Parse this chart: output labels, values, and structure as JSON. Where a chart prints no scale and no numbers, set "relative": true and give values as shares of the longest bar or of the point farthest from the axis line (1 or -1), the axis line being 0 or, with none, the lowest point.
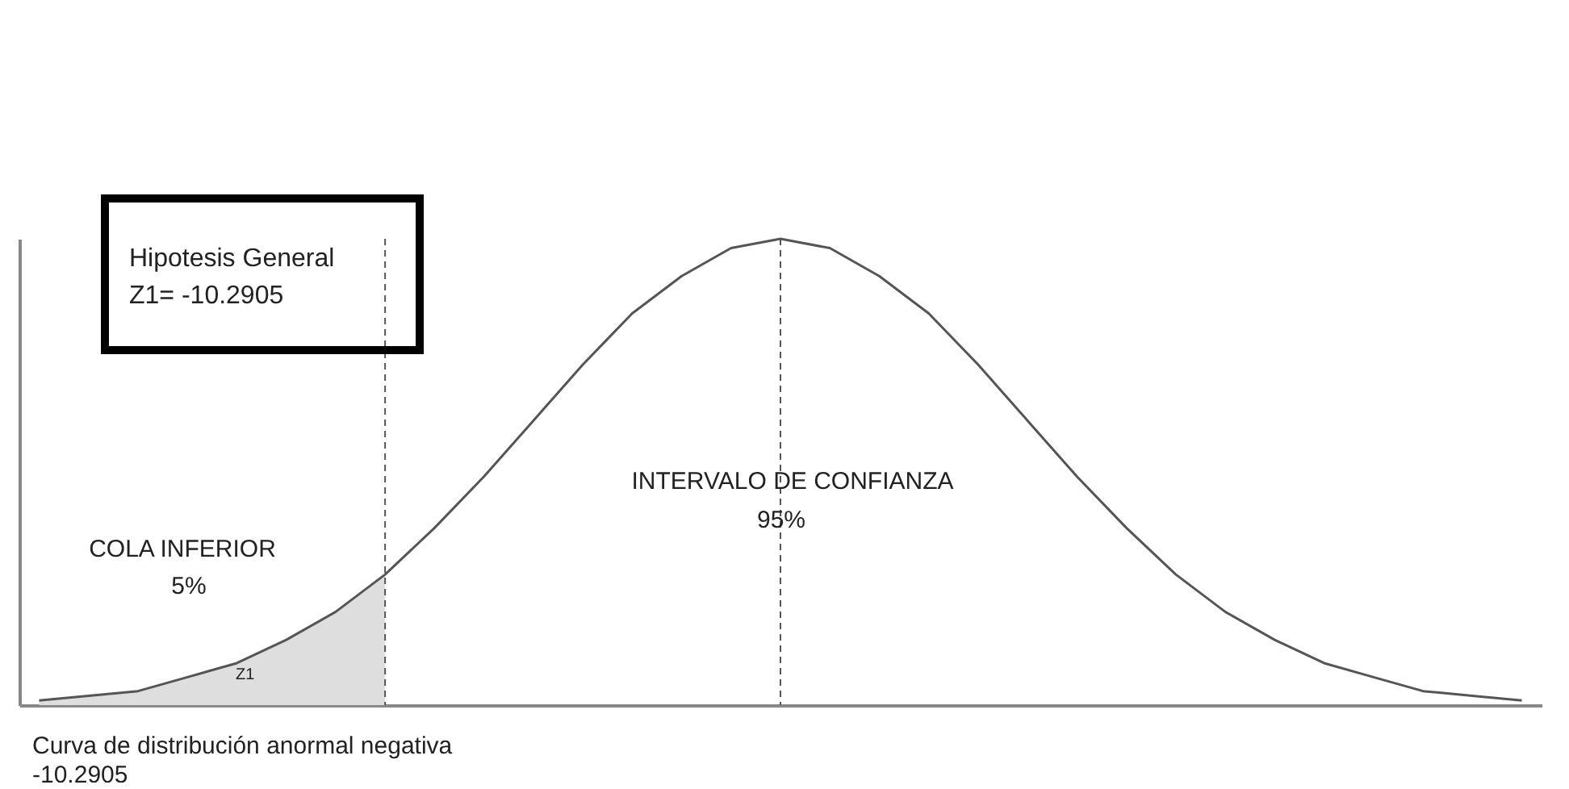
{
  "chart_data": {
    "type": "line",
    "relative": true,
    "categories": [
      null,
      null,
      null,
      null,
      null,
      null,
      null,
      null,
      null,
      null,
      null,
      null,
      null,
      null,
      null,
      null,
      null,
      null,
      null,
      null,
      null,
      null,
      null,
      null,
      null,
      null,
      null,
      null,
      null,
      null,
      null
    ],
    "series": [
      {
        "type": "area",
        "color": "#dedede",
        "values": [
          0.01,
          0.02,
          0.03,
          0.06,
          0.09,
          0.14,
          0.2,
          0.28,
          null,
          null,
          null,
          null,
          null,
          null,
          null,
          null,
          null,
          null,
          null,
          null,
          null,
          null,
          null,
          null,
          null,
          null,
          null,
          null,
          null,
          null,
          null
        ]
      },
      {
        "color": "#555555",
        "values": [
          0.01,
          0.02,
          0.03,
          0.06,
          0.09,
          0.14,
          0.2,
          0.28,
          0.38,
          0.49,
          0.61,
          0.73,
          0.84,
          0.92,
          0.98,
          1,
          0.98,
          0.92,
          0.84,
          0.73,
          0.61,
          0.49,
          0.38,
          0.28,
          0.2,
          0.14,
          0.09,
          0.06,
          0.03,
          0.02,
          0.01
        ]
      }
    ],
    "annotations": [
      "Hipotesis General",
      "Z1= -10.2905",
      "INTERVALO DE CONFIANZA",
      "95%",
      "COLA INFERIOR",
      "5%",
      "Z1",
      "Curva de distribución anormal negativa",
      "-10.2905"
    ]
  }
}
